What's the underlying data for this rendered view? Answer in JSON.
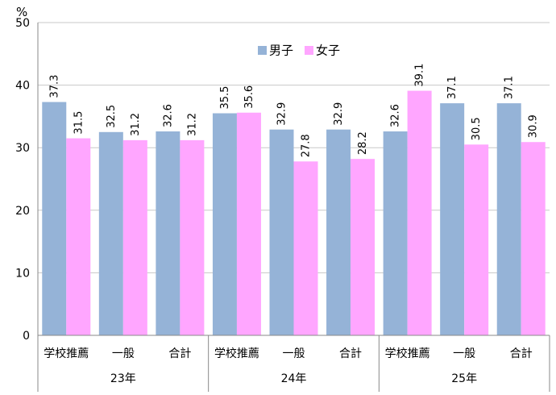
{
  "chart_data": {
    "type": "bar",
    "ylabel": "%",
    "ylim": [
      0,
      50
    ],
    "yticks": [
      0,
      10,
      20,
      30,
      40,
      50
    ],
    "groups": [
      {
        "label": "23年",
        "categories": [
          "学校推薦",
          "一般",
          "合計"
        ]
      },
      {
        "label": "24年",
        "categories": [
          "学校推薦",
          "一般",
          "合計"
        ]
      },
      {
        "label": "25年",
        "categories": [
          "学校推薦",
          "一般",
          "合計"
        ]
      }
    ],
    "series": [
      {
        "name": "男子",
        "color": "#95b3d7",
        "values": [
          37.3,
          32.5,
          32.6,
          35.5,
          32.9,
          32.9,
          32.6,
          37.1,
          37.1
        ]
      },
      {
        "name": "女子",
        "color": "#ffa6ff",
        "values": [
          31.5,
          31.2,
          31.2,
          35.6,
          27.8,
          28.2,
          39.1,
          30.5,
          30.9
        ]
      }
    ],
    "value_labels": [
      [
        "37.3",
        "32.5",
        "32.6",
        "35.5",
        "32.9",
        "32.9",
        "32.6",
        "37.1",
        "37.1"
      ],
      [
        "31.5",
        "31.2",
        "31.2",
        "35.6",
        "27.8",
        "28.2",
        "39.1",
        "30.5",
        "30.9"
      ]
    ],
    "legend_position": "top-center",
    "grid": true
  }
}
